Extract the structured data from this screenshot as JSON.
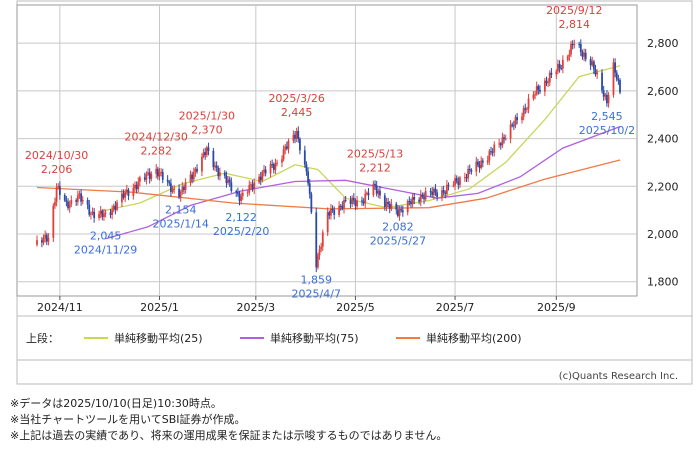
{
  "chart_data": {
    "type": "candlestick",
    "x_start": "2024-10-18",
    "x_end": "2025-10-10",
    "ylim": [
      1740,
      2960
    ],
    "y_ticks": [
      "1,800",
      "2,000",
      "2,200",
      "2,400",
      "2,600",
      "2,800"
    ],
    "y_tick_values": [
      1800,
      2000,
      2200,
      2400,
      2600,
      2800
    ],
    "x_ticks": [
      {
        "label": "2024/11",
        "date": "2024-11-01"
      },
      {
        "label": "2025/1",
        "date": "2025-01-01"
      },
      {
        "label": "2025/3",
        "date": "2025-03-01"
      },
      {
        "label": "2025/5",
        "date": "2025-05-01"
      },
      {
        "label": "2025/7",
        "date": "2025-07-01"
      },
      {
        "label": "2025/9",
        "date": "2025-09-01"
      }
    ],
    "price_path": [
      {
        "date": "2024-10-18",
        "value": 1955
      },
      {
        "date": "2024-10-25",
        "value": 1990
      },
      {
        "date": "2024-10-30",
        "value": 2195
      },
      {
        "date": "2024-11-05",
        "value": 2120
      },
      {
        "date": "2024-11-12",
        "value": 2160
      },
      {
        "date": "2024-11-20",
        "value": 2090
      },
      {
        "date": "2024-11-29",
        "value": 2075
      },
      {
        "date": "2024-12-10",
        "value": 2160
      },
      {
        "date": "2024-12-20",
        "value": 2220
      },
      {
        "date": "2024-12-30",
        "value": 2270
      },
      {
        "date": "2025-01-07",
        "value": 2200
      },
      {
        "date": "2025-01-14",
        "value": 2170
      },
      {
        "date": "2025-01-22",
        "value": 2260
      },
      {
        "date": "2025-01-30",
        "value": 2350
      },
      {
        "date": "2025-02-07",
        "value": 2250
      },
      {
        "date": "2025-02-14",
        "value": 2200
      },
      {
        "date": "2025-02-20",
        "value": 2150
      },
      {
        "date": "2025-03-03",
        "value": 2240
      },
      {
        "date": "2025-03-14",
        "value": 2300
      },
      {
        "date": "2025-03-26",
        "value": 2430
      },
      {
        "date": "2025-04-02",
        "value": 2220
      },
      {
        "date": "2025-04-07",
        "value": 1880
      },
      {
        "date": "2025-04-14",
        "value": 2080
      },
      {
        "date": "2025-04-24",
        "value": 2130
      },
      {
        "date": "2025-05-05",
        "value": 2140
      },
      {
        "date": "2025-05-13",
        "value": 2200
      },
      {
        "date": "2025-05-20",
        "value": 2120
      },
      {
        "date": "2025-05-27",
        "value": 2095
      },
      {
        "date": "2025-06-10",
        "value": 2160
      },
      {
        "date": "2025-06-24",
        "value": 2180
      },
      {
        "date": "2025-07-08",
        "value": 2250
      },
      {
        "date": "2025-07-22",
        "value": 2330
      },
      {
        "date": "2025-08-05",
        "value": 2450
      },
      {
        "date": "2025-08-20",
        "value": 2600
      },
      {
        "date": "2025-09-03",
        "value": 2700
      },
      {
        "date": "2025-09-12",
        "value": 2800
      },
      {
        "date": "2025-09-22",
        "value": 2720
      },
      {
        "date": "2025-10-02",
        "value": 2560
      },
      {
        "date": "2025-10-06",
        "value": 2700
      },
      {
        "date": "2025-10-10",
        "value": 2600
      }
    ],
    "series": [
      {
        "name": "単純移動平均(25)",
        "color": "#c8d65a",
        "points": [
          {
            "date": "2024-11-26",
            "value": 2095
          },
          {
            "date": "2024-12-20",
            "value": 2130
          },
          {
            "date": "2025-01-15",
            "value": 2210
          },
          {
            "date": "2025-02-10",
            "value": 2255
          },
          {
            "date": "2025-03-05",
            "value": 2220
          },
          {
            "date": "2025-03-25",
            "value": 2290
          },
          {
            "date": "2025-04-08",
            "value": 2270
          },
          {
            "date": "2025-04-25",
            "value": 2150
          },
          {
            "date": "2025-05-20",
            "value": 2110
          },
          {
            "date": "2025-06-15",
            "value": 2140
          },
          {
            "date": "2025-07-10",
            "value": 2190
          },
          {
            "date": "2025-08-01",
            "value": 2300
          },
          {
            "date": "2025-08-25",
            "value": 2480
          },
          {
            "date": "2025-09-15",
            "value": 2660
          },
          {
            "date": "2025-10-10",
            "value": 2705
          }
        ]
      },
      {
        "name": "単純移動平均(75)",
        "color": "#b060e0",
        "points": [
          {
            "date": "2024-11-29",
            "value": 1980
          },
          {
            "date": "2024-12-25",
            "value": 2030
          },
          {
            "date": "2025-01-20",
            "value": 2120
          },
          {
            "date": "2025-02-20",
            "value": 2180
          },
          {
            "date": "2025-03-25",
            "value": 2220
          },
          {
            "date": "2025-04-25",
            "value": 2225
          },
          {
            "date": "2025-05-25",
            "value": 2185
          },
          {
            "date": "2025-06-20",
            "value": 2150
          },
          {
            "date": "2025-07-15",
            "value": 2170
          },
          {
            "date": "2025-08-10",
            "value": 2240
          },
          {
            "date": "2025-09-05",
            "value": 2360
          },
          {
            "date": "2025-10-10",
            "value": 2450
          }
        ]
      },
      {
        "name": "単純移動平均(200)",
        "color": "#ef7a4a",
        "points": [
          {
            "date": "2024-10-18",
            "value": 2195
          },
          {
            "date": "2024-12-15",
            "value": 2175
          },
          {
            "date": "2025-02-15",
            "value": 2130
          },
          {
            "date": "2025-04-15",
            "value": 2105
          },
          {
            "date": "2025-06-15",
            "value": 2110
          },
          {
            "date": "2025-07-20",
            "value": 2150
          },
          {
            "date": "2025-08-25",
            "value": 2230
          },
          {
            "date": "2025-10-10",
            "value": 2310
          }
        ]
      }
    ],
    "annotations": [
      {
        "kind": "high",
        "date": "2024-10-30",
        "value": 2206,
        "date_label": "2024/10/30",
        "value_label": "2,206"
      },
      {
        "kind": "low",
        "date": "2024-11-29",
        "value": 2045,
        "date_label": "2024/11/29",
        "value_label": "2,045"
      },
      {
        "kind": "high",
        "date": "2024-12-30",
        "value": 2282,
        "date_label": "2024/12/30",
        "value_label": "2,282"
      },
      {
        "kind": "low",
        "date": "2025-01-14",
        "value": 2154,
        "date_label": "2025/1/14",
        "value_label": "2,154"
      },
      {
        "kind": "high",
        "date": "2025-01-30",
        "value": 2370,
        "date_label": "2025/1/30",
        "value_label": "2,370"
      },
      {
        "kind": "low",
        "date": "2025-02-20",
        "value": 2122,
        "date_label": "2025/2/20",
        "value_label": "2,122"
      },
      {
        "kind": "high",
        "date": "2025-03-26",
        "value": 2445,
        "date_label": "2025/3/26",
        "value_label": "2,445"
      },
      {
        "kind": "low",
        "date": "2025-04-07",
        "value": 1859,
        "date_label": "2025/4/7",
        "value_label": "1,859"
      },
      {
        "kind": "high",
        "date": "2025-05-13",
        "value": 2212,
        "date_label": "2025/5/13",
        "value_label": "2,212"
      },
      {
        "kind": "low",
        "date": "2025-05-27",
        "value": 2082,
        "date_label": "2025/5/27",
        "value_label": "2,082"
      },
      {
        "kind": "high",
        "date": "2025-09-12",
        "value": 2814,
        "date_label": "2025/9/12",
        "value_label": "2,814"
      },
      {
        "kind": "low",
        "date": "2025-10-02",
        "value": 2545,
        "date_label": "2025/10/2",
        "value_label": "2,545"
      }
    ],
    "legend_prefix": "上段：",
    "grid": true,
    "up_color": "#e0403a",
    "down_color": "#2a4aa8"
  },
  "credit": "(c)Quants Research Inc.",
  "notes": [
    "※データは2025/10/10(日足)10:30時点。",
    "※当社チャートツールを用いてSBI証券が作成。",
    "※上記は過去の実績であり、将来の運用成果を保証または示唆するものではありません。"
  ],
  "colors": {
    "high_label": "#d9423a",
    "low_label": "#3a6fd8",
    "grid": "#c8c8c8"
  }
}
